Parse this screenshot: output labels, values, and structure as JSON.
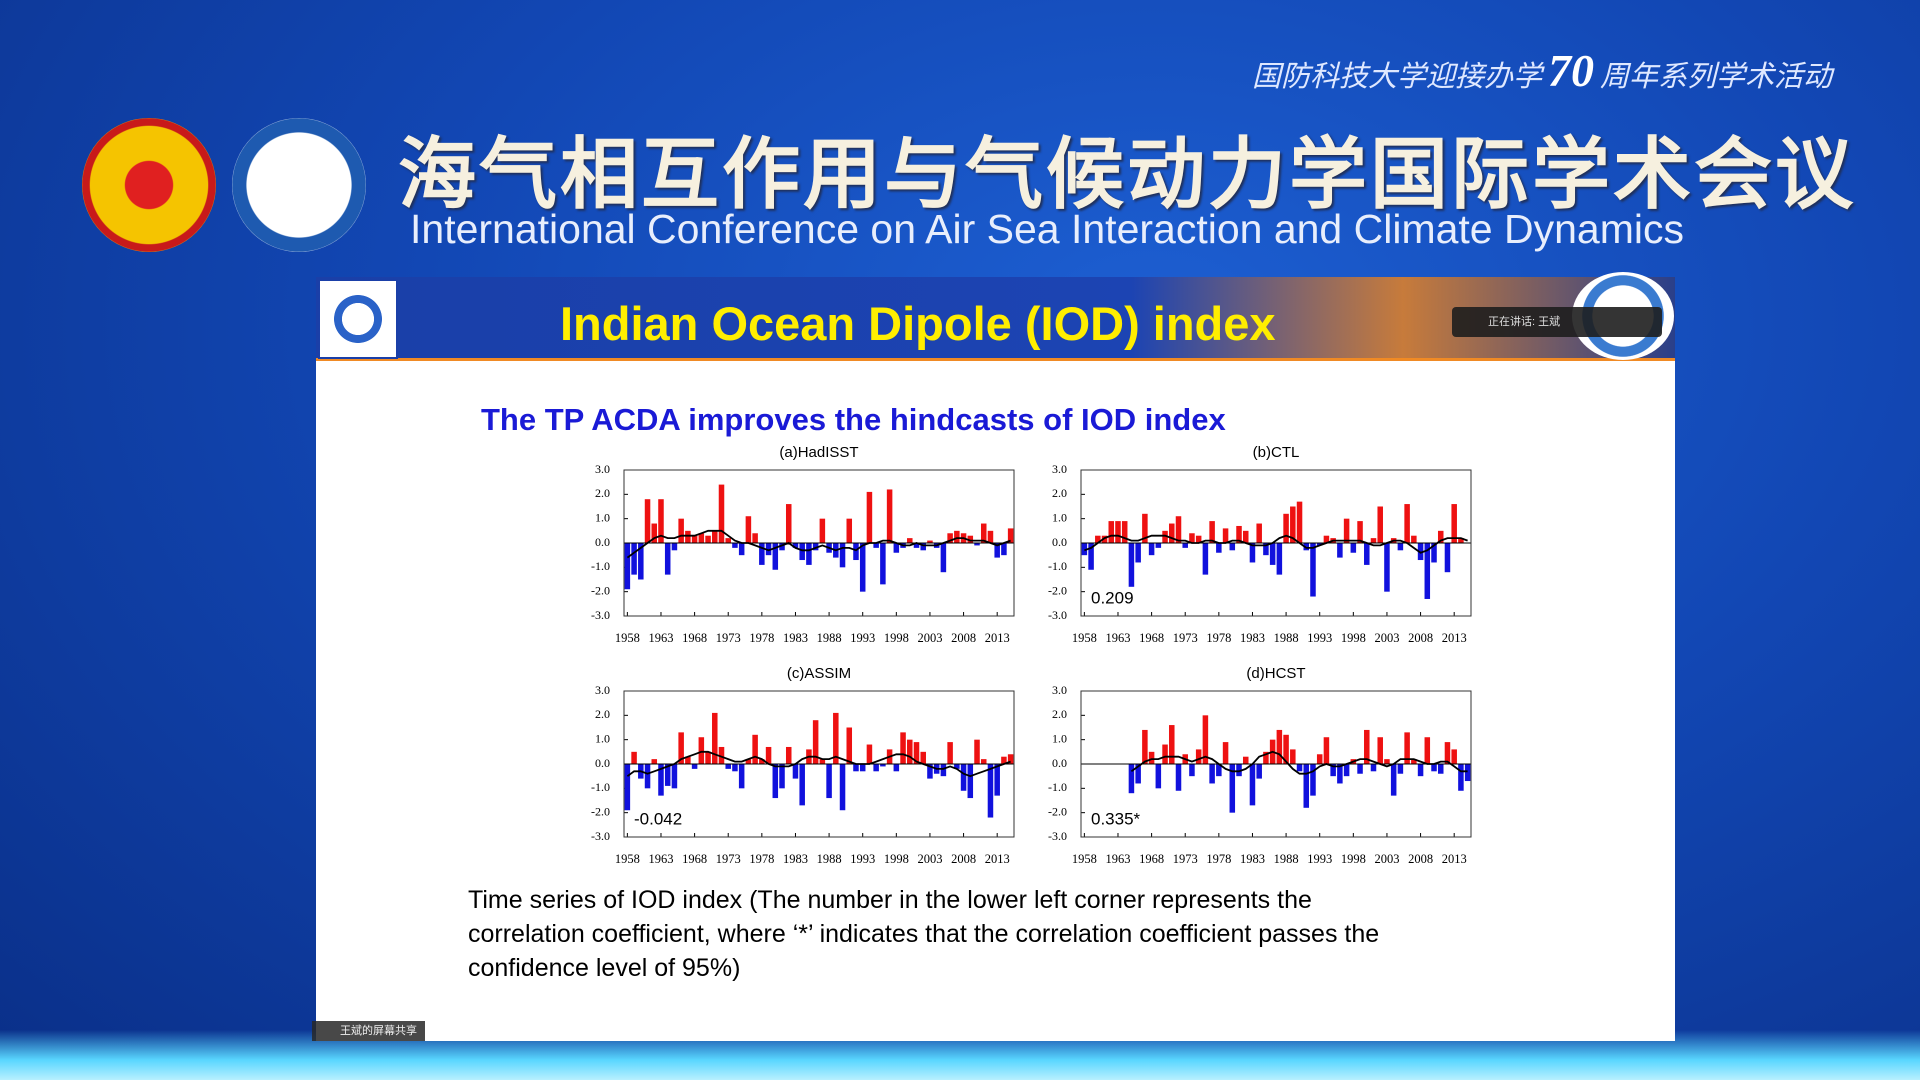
{
  "banner": {
    "series_left": "国防科技大学迎接办学",
    "anniversary": "70",
    "series_right": "周年系列学术活动",
    "title_zh": "海气相互作用与气候动力学国际学术会议",
    "title_en": "International Conference on Air Sea Interaction and Climate Dynamics"
  },
  "slide": {
    "title": "Indian Ocean Dipole (IOD) index",
    "subtitle": "The TP ACDA improves the hindcasts of IOD index",
    "caption": [
      "Time series of IOD index (The number in the lower left corner represents the",
      "correlation coefficient, where ‘*’ indicates that the correlation coefficient passes the",
      "confidence level of 95%)"
    ],
    "speaker": "正在讲话: 王斌",
    "share": "王斌的屏幕共享"
  },
  "chart_data": [
    {
      "type": "bar",
      "title": "(a)HadISST",
      "x": [
        1958,
        1959,
        1960,
        1961,
        1962,
        1963,
        1964,
        1965,
        1966,
        1967,
        1968,
        1969,
        1970,
        1971,
        1972,
        1973,
        1974,
        1975,
        1976,
        1977,
        1978,
        1979,
        1980,
        1981,
        1982,
        1983,
        1984,
        1985,
        1986,
        1987,
        1988,
        1989,
        1990,
        1991,
        1992,
        1993,
        1994,
        1995,
        1996,
        1997,
        1998,
        1999,
        2000,
        2001,
        2002,
        2003,
        2004,
        2005,
        2006,
        2007,
        2008,
        2009,
        2010,
        2011,
        2012,
        2013,
        2014,
        2015
      ],
      "values": [
        -1.9,
        -1.3,
        -1.5,
        1.8,
        0.8,
        1.8,
        -1.3,
        -0.3,
        1.0,
        0.5,
        0.3,
        0.4,
        0.3,
        0.5,
        2.4,
        0.2,
        -0.2,
        -0.5,
        1.1,
        0.4,
        -0.9,
        -0.5,
        -1.1,
        -0.3,
        1.6,
        -0.2,
        -0.7,
        -0.9,
        -0.3,
        1.0,
        -0.4,
        -0.6,
        -1.0,
        1.0,
        -0.7,
        -2.0,
        2.1,
        -0.2,
        -1.7,
        2.2,
        -0.4,
        -0.2,
        0.2,
        -0.2,
        -0.3,
        0.1,
        -0.2,
        -1.2,
        0.4,
        0.5,
        0.4,
        0.3,
        -0.1,
        0.8,
        0.5,
        -0.6,
        -0.5,
        0.6
      ],
      "line_values": [
        -0.6,
        -0.4,
        -0.2,
        0,
        0.2,
        0.3,
        0.2,
        0.2,
        0.3,
        0.3,
        0.3,
        0.4,
        0.5,
        0.5,
        0.5,
        0.3,
        0.1,
        0,
        0,
        -0.1,
        -0.2,
        -0.3,
        -0.2,
        -0.1,
        0,
        -0.2,
        -0.3,
        -0.3,
        -0.2,
        -0.1,
        -0.2,
        -0.3,
        -0.2,
        -0.2,
        -0.3,
        -0.1,
        0,
        0,
        0.1,
        0.1,
        0,
        -0.1,
        -0.1,
        0,
        -0.1,
        -0.1,
        -0.1,
        0,
        0.1,
        0.2,
        0.2,
        0.1,
        0.1,
        0.1,
        0,
        -0.1,
        0,
        0.1
      ],
      "pos_color": "#ee1111",
      "neg_color": "#1111dd",
      "line_color": "#000000",
      "xlim": [
        1957.5,
        2015.5
      ],
      "xticks": [
        1958,
        1963,
        1968,
        1973,
        1978,
        1983,
        1988,
        1993,
        1998,
        2003,
        2008,
        2013
      ],
      "ylim": [
        -3,
        3
      ],
      "yticks": [
        {
          "value": 3,
          "label": "3.0"
        },
        {
          "value": 2,
          "label": "2.0"
        },
        {
          "value": 1,
          "label": "1.0"
        },
        {
          "value": 0,
          "label": "0.0"
        },
        {
          "value": -1,
          "label": "-1.0"
        },
        {
          "value": -2,
          "label": "-2.0"
        },
        {
          "value": -3,
          "label": "-3.0"
        }
      ]
    },
    {
      "type": "bar",
      "title": "(b)CTL",
      "annotation": "0.209",
      "x": [
        1958,
        1959,
        1960,
        1961,
        1962,
        1963,
        1964,
        1965,
        1966,
        1967,
        1968,
        1969,
        1970,
        1971,
        1972,
        1973,
        1974,
        1975,
        1976,
        1977,
        1978,
        1979,
        1980,
        1981,
        1982,
        1983,
        1984,
        1985,
        1986,
        1987,
        1988,
        1989,
        1990,
        1991,
        1992,
        1993,
        1994,
        1995,
        1996,
        1997,
        1998,
        1999,
        2000,
        2001,
        2002,
        2003,
        2004,
        2005,
        2006,
        2007,
        2008,
        2009,
        2010,
        2011,
        2012,
        2013,
        2014,
        2015
      ],
      "values": [
        -0.5,
        -1.1,
        0.3,
        0.3,
        0.9,
        0.9,
        0.9,
        -1.8,
        -0.8,
        1.2,
        -0.5,
        -0.2,
        0.5,
        0.8,
        1.1,
        -0.2,
        0.4,
        0.3,
        -1.3,
        0.9,
        -0.4,
        0.6,
        -0.3,
        0.7,
        0.5,
        -0.8,
        0.8,
        -0.5,
        -0.9,
        -1.3,
        1.2,
        1.5,
        1.7,
        -0.3,
        -2.2,
        -0.1,
        0.3,
        0.2,
        -0.6,
        1.0,
        -0.4,
        0.9,
        -0.9,
        0.2,
        1.5,
        -2.0,
        0.2,
        -0.3,
        1.6,
        0.3,
        -0.7,
        -2.3,
        -0.8,
        0.5,
        -1.2,
        1.6,
        0.2,
        0
      ],
      "line_values": [
        -0.3,
        -0.2,
        0,
        0.2,
        0.3,
        0.3,
        0.2,
        0.1,
        0.1,
        0.2,
        0.3,
        0.3,
        0.3,
        0.2,
        0.1,
        0.1,
        0,
        0,
        0.1,
        0.1,
        0,
        0,
        0.1,
        0.1,
        0,
        -0.1,
        -0.1,
        -0.1,
        0,
        0.2,
        0.3,
        0.2,
        0,
        -0.2,
        -0.2,
        -0.1,
        0,
        0.1,
        0.1,
        0.1,
        0.1,
        0.1,
        0,
        -0.1,
        -0.1,
        0,
        0.1,
        0.1,
        0,
        -0.2,
        -0.4,
        -0.3,
        -0.1,
        0.1,
        0.2,
        0.2,
        0.2,
        0.1
      ],
      "pos_color": "#ee1111",
      "neg_color": "#1111dd",
      "line_color": "#000000",
      "xlim": [
        1957.5,
        2015.5
      ],
      "xticks": [
        1958,
        1963,
        1968,
        1973,
        1978,
        1983,
        1988,
        1993,
        1998,
        2003,
        2008,
        2013
      ],
      "ylim": [
        -3,
        3
      ],
      "yticks": [
        {
          "value": 3,
          "label": "3.0"
        },
        {
          "value": 2,
          "label": "2.0"
        },
        {
          "value": 1,
          "label": "1.0"
        },
        {
          "value": 0,
          "label": "0.0"
        },
        {
          "value": -1,
          "label": "-1.0"
        },
        {
          "value": -2,
          "label": "-2.0"
        },
        {
          "value": -3,
          "label": "-3.0"
        }
      ]
    },
    {
      "type": "bar",
      "title": "(c)ASSIM",
      "annotation": "-0.042",
      "x": [
        1958,
        1959,
        1960,
        1961,
        1962,
        1963,
        1964,
        1965,
        1966,
        1967,
        1968,
        1969,
        1970,
        1971,
        1972,
        1973,
        1974,
        1975,
        1976,
        1977,
        1978,
        1979,
        1980,
        1981,
        1982,
        1983,
        1984,
        1985,
        1986,
        1987,
        1988,
        1989,
        1990,
        1991,
        1992,
        1993,
        1994,
        1995,
        1996,
        1997,
        1998,
        1999,
        2000,
        2001,
        2002,
        2003,
        2004,
        2005,
        2006,
        2007,
        2008,
        2009,
        2010,
        2011,
        2012,
        2013,
        2014,
        2015
      ],
      "values": [
        -1.9,
        0.5,
        -0.6,
        -1.0,
        0.2,
        -1.3,
        -0.9,
        -1.0,
        1.3,
        0.3,
        -0.2,
        1.1,
        0.5,
        2.1,
        0.7,
        -0.2,
        -0.3,
        -1.0,
        0.2,
        1.2,
        0.2,
        0.7,
        -1.4,
        -1.0,
        0.7,
        -0.6,
        -1.7,
        0.6,
        1.8,
        0.2,
        -1.4,
        2.1,
        -1.9,
        1.5,
        -0.3,
        -0.3,
        0.8,
        -0.3,
        -0.1,
        0.6,
        -0.3,
        1.3,
        1.0,
        0.9,
        0.5,
        -0.6,
        -0.4,
        -0.5,
        0.9,
        -0.2,
        -1.1,
        -1.4,
        1.0,
        0.2,
        -2.2,
        -1.3,
        0.3,
        0.4
      ],
      "line_values": [
        -0.5,
        -0.3,
        -0.3,
        -0.4,
        -0.3,
        -0.2,
        -0.1,
        0,
        0.2,
        0.3,
        0.4,
        0.5,
        0.5,
        0.4,
        0.3,
        0.2,
        0.1,
        0.1,
        0.2,
        0.3,
        0.2,
        0,
        -0.1,
        -0.1,
        -0.1,
        0,
        0.2,
        0.3,
        0.3,
        0.2,
        0.2,
        0.3,
        0.2,
        0.1,
        0,
        0,
        0,
        0.1,
        0.2,
        0.3,
        0.4,
        0.4,
        0.3,
        0.1,
        0,
        -0.1,
        -0.2,
        -0.2,
        -0.1,
        -0.2,
        -0.4,
        -0.5,
        -0.4,
        -0.3,
        -0.2,
        -0.1,
        0,
        0.1
      ],
      "pos_color": "#ee1111",
      "neg_color": "#1111dd",
      "line_color": "#000000",
      "xlim": [
        1957.5,
        2015.5
      ],
      "xticks": [
        1958,
        1963,
        1968,
        1973,
        1978,
        1983,
        1988,
        1993,
        1998,
        2003,
        2008,
        2013
      ],
      "ylim": [
        -3,
        3
      ],
      "yticks": [
        {
          "value": 3,
          "label": "3.0"
        },
        {
          "value": 2,
          "label": "2.0"
        },
        {
          "value": 1,
          "label": "1.0"
        },
        {
          "value": 0,
          "label": "0.0"
        },
        {
          "value": -1,
          "label": "-1.0"
        },
        {
          "value": -2,
          "label": "-2.0"
        },
        {
          "value": -3,
          "label": "-3.0"
        }
      ]
    },
    {
      "type": "bar",
      "title": "(d)HCST",
      "annotation": "0.335*",
      "x": [
        1958,
        1959,
        1960,
        1961,
        1962,
        1963,
        1964,
        1965,
        1966,
        1967,
        1968,
        1969,
        1970,
        1971,
        1972,
        1973,
        1974,
        1975,
        1976,
        1977,
        1978,
        1979,
        1980,
        1981,
        1982,
        1983,
        1984,
        1985,
        1986,
        1987,
        1988,
        1989,
        1990,
        1991,
        1992,
        1993,
        1994,
        1995,
        1996,
        1997,
        1998,
        1999,
        2000,
        2001,
        2002,
        2003,
        2004,
        2005,
        2006,
        2007,
        2008,
        2009,
        2010,
        2011,
        2012,
        2013,
        2014,
        2015
      ],
      "values": [
        null,
        null,
        null,
        null,
        null,
        null,
        null,
        -1.2,
        -0.8,
        1.4,
        0.5,
        -1.0,
        0.8,
        1.6,
        -1.1,
        0.4,
        -0.5,
        0.6,
        2.0,
        -0.8,
        -0.5,
        0.9,
        -2.0,
        -0.5,
        0.3,
        -1.7,
        -0.6,
        0.5,
        1.0,
        1.4,
        1.2,
        0.6,
        -0.3,
        -1.8,
        -1.3,
        0.4,
        1.1,
        -0.5,
        -0.8,
        -0.5,
        0.2,
        -0.4,
        1.4,
        -0.3,
        1.1,
        0.2,
        -1.3,
        -0.4,
        1.3,
        0.2,
        -0.5,
        1.1,
        -0.3,
        -0.4,
        0.9,
        0.6,
        -1.1,
        -0.7
      ],
      "line_values": [
        null,
        null,
        null,
        null,
        null,
        null,
        null,
        -0.3,
        -0.1,
        0.1,
        0.2,
        0.2,
        0.3,
        0.3,
        0.3,
        0.2,
        0.1,
        0.2,
        0.3,
        0.2,
        0,
        -0.2,
        -0.3,
        -0.3,
        -0.2,
        0,
        0.3,
        0.4,
        0.5,
        0.4,
        0.1,
        -0.2,
        -0.4,
        -0.4,
        -0.3,
        -0.1,
        0,
        -0.1,
        -0.1,
        0,
        0.1,
        0.2,
        0.2,
        0.1,
        0,
        -0.1,
        0,
        0.2,
        0.2,
        0.2,
        0.1,
        0,
        0,
        0.1,
        0.1,
        -0.1,
        -0.3,
        -0.3
      ],
      "pos_color": "#ee1111",
      "neg_color": "#1111dd",
      "line_color": "#000000",
      "xlim": [
        1957.5,
        2015.5
      ],
      "xticks": [
        1958,
        1963,
        1968,
        1973,
        1978,
        1983,
        1988,
        1993,
        1998,
        2003,
        2008,
        2013
      ],
      "ylim": [
        -3,
        3
      ],
      "yticks": [
        {
          "value": 3,
          "label": "3.0"
        },
        {
          "value": 2,
          "label": "2.0"
        },
        {
          "value": 1,
          "label": "1.0"
        },
        {
          "value": 0,
          "label": "0.0"
        },
        {
          "value": -1,
          "label": "-1.0"
        },
        {
          "value": -2,
          "label": "-2.0"
        },
        {
          "value": -3,
          "label": "-3.0"
        }
      ]
    }
  ]
}
